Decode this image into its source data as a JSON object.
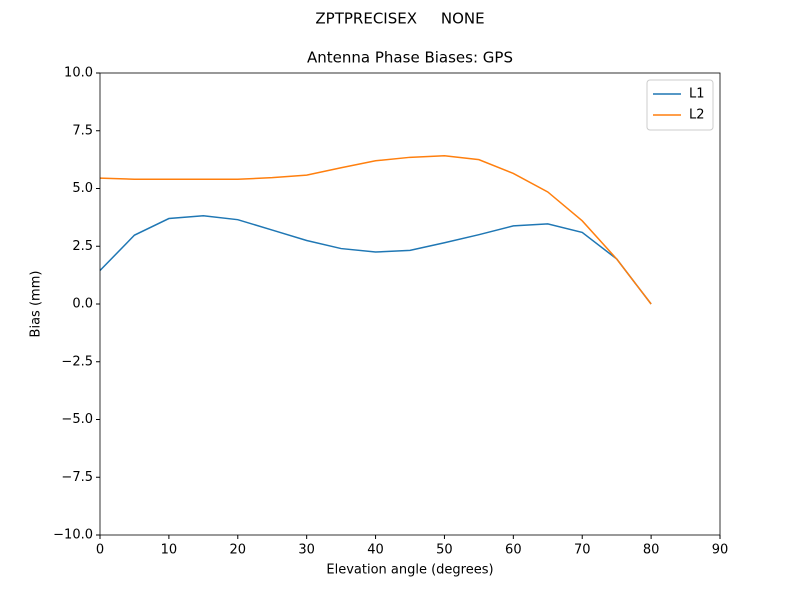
{
  "chart_data": {
    "type": "line",
    "suptitle": "ZPTPRECISEX     NONE",
    "title": "Antenna Phase Biases: GPS",
    "x_label": "Elevation angle (degrees)",
    "y_label": "Bias (mm)",
    "x": [
      0,
      5,
      10,
      15,
      20,
      25,
      30,
      35,
      40,
      45,
      50,
      55,
      60,
      65,
      70,
      75,
      80
    ],
    "series": [
      {
        "name": "L1",
        "color": "#1f77b4",
        "values": [
          1.45,
          2.98,
          3.7,
          3.82,
          3.65,
          3.2,
          2.75,
          2.4,
          2.25,
          2.32,
          2.65,
          3.0,
          3.38,
          3.47,
          3.1,
          1.95,
          0
        ]
      },
      {
        "name": "L2",
        "color": "#ff7f0e",
        "values": [
          5.45,
          5.4,
          5.4,
          5.4,
          5.4,
          5.47,
          5.58,
          5.9,
          6.2,
          6.35,
          6.42,
          6.25,
          5.65,
          4.85,
          3.6,
          1.95,
          0
        ]
      }
    ],
    "xlim": [
      0,
      90
    ],
    "xticks": [
      0,
      10,
      20,
      30,
      40,
      50,
      60,
      70,
      80,
      90
    ],
    "ylim": [
      -10,
      10
    ],
    "yticks": [
      {
        "value": -10,
        "label": "−10.0"
      },
      {
        "value": -7.5,
        "label": "−7.5"
      },
      {
        "value": -5,
        "label": "−5.0"
      },
      {
        "value": -2.5,
        "label": "−2.5"
      },
      {
        "value": 0,
        "label": "0.0"
      },
      2.5,
      {
        "value": 5,
        "label": "5.0"
      },
      7.5,
      {
        "value": 10,
        "label": "10.0"
      }
    ],
    "legend": "upper right",
    "grid": false
  }
}
